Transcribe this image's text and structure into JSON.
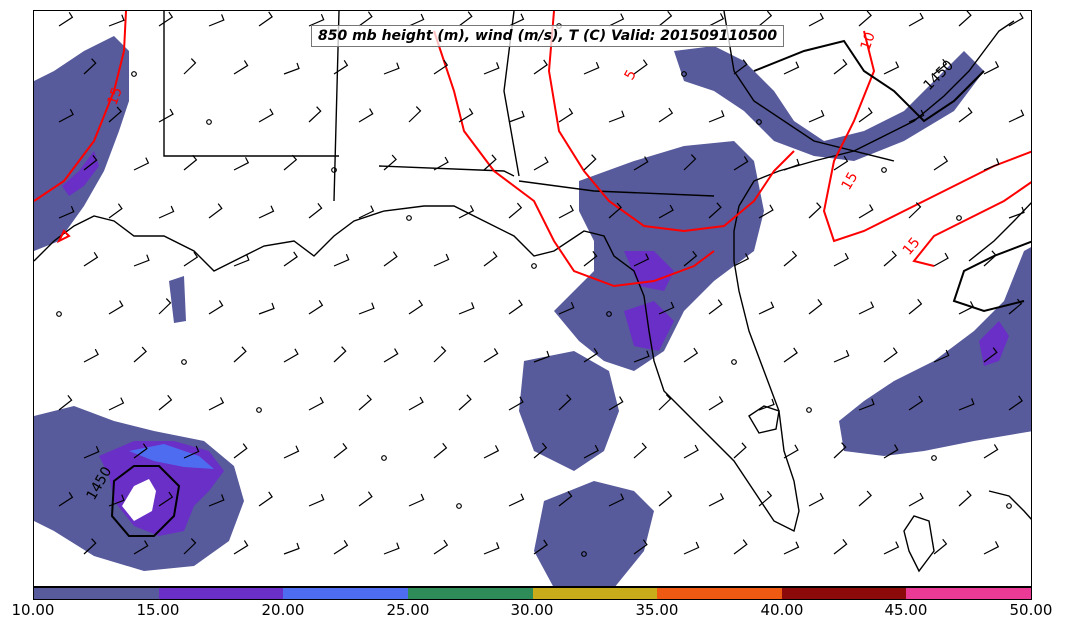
{
  "title": "850 mb height (m), wind (m/s), T (C) Valid: 201509110500",
  "colorbar": {
    "ticks": [
      "10.00",
      "15.00",
      "20.00",
      "25.00",
      "30.00",
      "35.00",
      "40.00",
      "45.00",
      "50.00"
    ],
    "colors": [
      "#575a9b",
      "#6a2fc6",
      "#4e6cf0",
      "#2d8c57",
      "#c8ac1a",
      "#ef5a12",
      "#8c0a0a",
      "#ea3a96"
    ]
  },
  "contour_labels": {
    "temp_15_nw": "15",
    "temp_15_ne": "15",
    "temp_15_e": "15",
    "temp_5_n": "5",
    "temp_10_n": "10",
    "height_1450_ne": "1450",
    "height_1450_sw": "1450"
  },
  "colors": {
    "coast": "#000000",
    "temperature": "#ff0000",
    "height": "#000000"
  }
}
